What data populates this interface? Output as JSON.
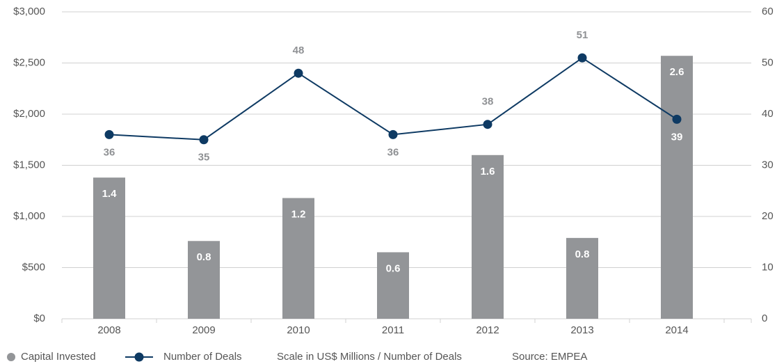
{
  "chart_data": {
    "type": "bar_line",
    "categories": [
      "2008",
      "2009",
      "2010",
      "2011",
      "2012",
      "2013",
      "2014"
    ],
    "series": [
      {
        "name": "Capital Invested",
        "type": "bar",
        "color": "#939598",
        "axis": "y",
        "values": [
          1380,
          760,
          1180,
          650,
          1600,
          790,
          2570
        ],
        "value_labels": [
          "1.4",
          "0.8",
          "1.2",
          "0.6",
          "1.6",
          "0.8",
          "2.6"
        ]
      },
      {
        "name": "Number of Deals",
        "type": "line",
        "color": "#0e3a63",
        "axis": "y2",
        "values": [
          36,
          35,
          48,
          36,
          38,
          51,
          39
        ]
      }
    ],
    "ylim": [
      0,
      3000
    ],
    "yticks": [
      {
        "value": 0,
        "label": "$0"
      },
      {
        "value": 500,
        "label": "$500"
      },
      {
        "value": 1000,
        "label": "$1,000"
      },
      {
        "value": 1500,
        "label": "$1,500"
      },
      {
        "value": 2000,
        "label": "$2,000"
      },
      {
        "value": 2500,
        "label": "$2,500"
      },
      {
        "value": 3000,
        "label": "$3,000"
      }
    ],
    "y2lim": [
      0,
      60
    ],
    "y2ticks": [
      0,
      10,
      20,
      30,
      40,
      50,
      60
    ],
    "grid": true,
    "note": "Scale in US$ Millions / Number of Deals",
    "source": "Source: EMPEA"
  }
}
